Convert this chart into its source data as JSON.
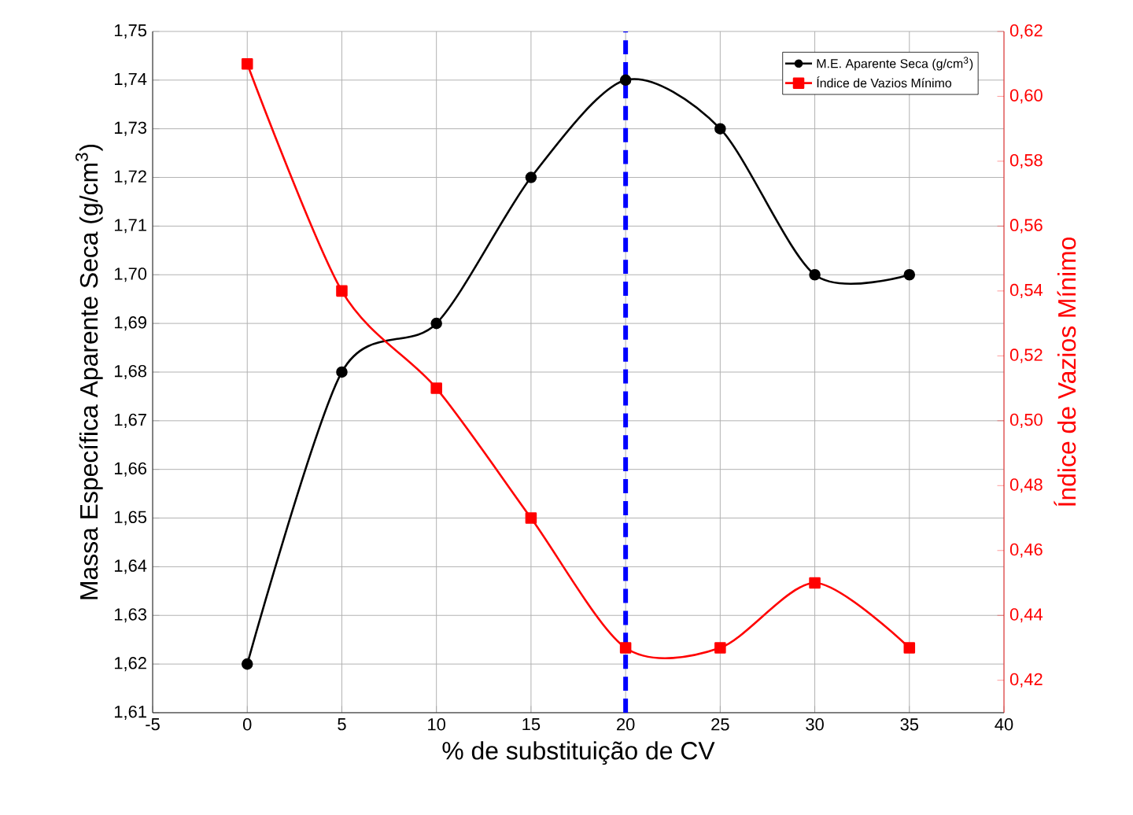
{
  "chart_data": {
    "type": "line",
    "xlabel": "% de substituição de CV",
    "ylabel": "Massa Específica Aparente Seca (g/cm$^{3}$)",
    "y2label": "Índice de Vazios Mínimo",
    "x": [
      0,
      5,
      10,
      15,
      20,
      25,
      30,
      35
    ],
    "series": [
      {
        "name": "M.E. Aparente Seca (g/cm$^{3}$)",
        "color": "#000000",
        "marker": "circle",
        "values": [
          1.62,
          1.68,
          1.69,
          1.72,
          1.74,
          1.73,
          1.7,
          1.7
        ]
      },
      {
        "name": "Índice de Vazios Mínimo",
        "color": "#ff0000",
        "marker": "square",
        "axis": "y2",
        "values": [
          0.61,
          0.54,
          0.51,
          0.47,
          0.43,
          0.43,
          0.45,
          0.43
        ]
      }
    ],
    "xlim": [
      -5,
      40
    ],
    "xticks": [
      -5,
      0,
      5,
      10,
      15,
      20,
      25,
      30,
      35,
      40
    ],
    "ylim": [
      1.61,
      1.75
    ],
    "yticks": [
      {
        "value": 1.61,
        "label": "1,61"
      },
      {
        "value": 1.62,
        "label": "1,62"
      },
      {
        "value": 1.63,
        "label": "1,63"
      },
      {
        "value": 1.64,
        "label": "1,64"
      },
      {
        "value": 1.65,
        "label": "1,65"
      },
      {
        "value": 1.66,
        "label": "1,66"
      },
      {
        "value": 1.67,
        "label": "1,67"
      },
      {
        "value": 1.68,
        "label": "1,68"
      },
      {
        "value": 1.69,
        "label": "1,69"
      },
      {
        "value": 1.7,
        "label": "1,70"
      },
      {
        "value": 1.71,
        "label": "1,71"
      },
      {
        "value": 1.72,
        "label": "1,72"
      },
      {
        "value": 1.73,
        "label": "1,73"
      },
      {
        "value": 1.74,
        "label": "1,74"
      },
      {
        "value": 1.75,
        "label": "1,75"
      }
    ],
    "y2lim": [
      0.41,
      0.62
    ],
    "y2ticks": [
      {
        "value": 0.42,
        "label": "0,42"
      },
      {
        "value": 0.44,
        "label": "0,44"
      },
      {
        "value": 0.46,
        "label": "0,46"
      },
      {
        "value": 0.48,
        "label": "0,48"
      },
      {
        "value": 0.5,
        "label": "0,50"
      },
      {
        "value": 0.52,
        "label": "0,52"
      },
      {
        "value": 0.54,
        "label": "0,54"
      },
      {
        "value": 0.56,
        "label": "0,56"
      },
      {
        "value": 0.58,
        "label": "0,58"
      },
      {
        "value": 0.6,
        "label": "0,60"
      },
      {
        "value": 0.62,
        "label": "0,62"
      }
    ],
    "ref_lines": [
      {
        "axis": "x",
        "value": 20,
        "color": "#0000ff",
        "line_style": "dashed"
      }
    ],
    "grid": true,
    "legend": "top right",
    "line_style": "solid"
  }
}
